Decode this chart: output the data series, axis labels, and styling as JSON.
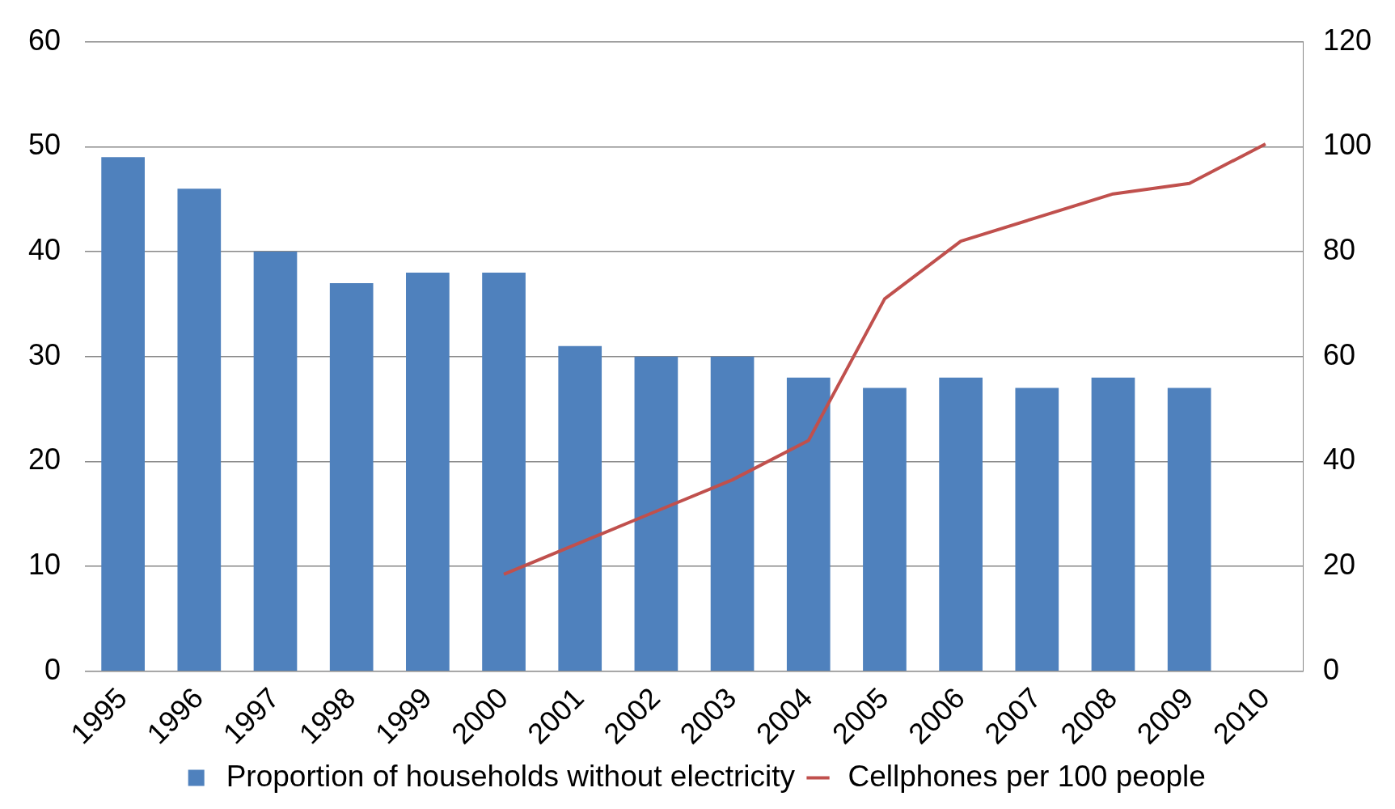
{
  "chart_data": {
    "type": "bar",
    "categories": [
      "1995",
      "1996",
      "1997",
      "1998",
      "1999",
      "2000",
      "2001",
      "2002",
      "2003",
      "2004",
      "2005",
      "2006",
      "2007",
      "2008",
      "2009",
      "2010"
    ],
    "series": [
      {
        "name": "Proportion of households without electricity",
        "color": "#4f81bd",
        "values": [
          49,
          46,
          40,
          37,
          38,
          38,
          31,
          30,
          30,
          28,
          27,
          28,
          27,
          28,
          27,
          null
        ]
      },
      {
        "name": "Cellphones per 100 people",
        "type": "line",
        "axis": "y2",
        "color": "#c0504d",
        "values": [
          null,
          null,
          null,
          null,
          null,
          18.5,
          24.5,
          30.5,
          36.5,
          44,
          71,
          82,
          86.5,
          91,
          93,
          100.5
        ]
      }
    ],
    "ylim": [
      0,
      60
    ],
    "yticks": [
      0,
      10,
      20,
      30,
      40,
      50,
      60
    ],
    "y2lim": [
      0,
      120
    ],
    "y2ticks": [
      0,
      20,
      40,
      60,
      80,
      100,
      120
    ],
    "grid": "y",
    "legend": "bottom",
    "marker": "none",
    "line_style": "solid"
  }
}
